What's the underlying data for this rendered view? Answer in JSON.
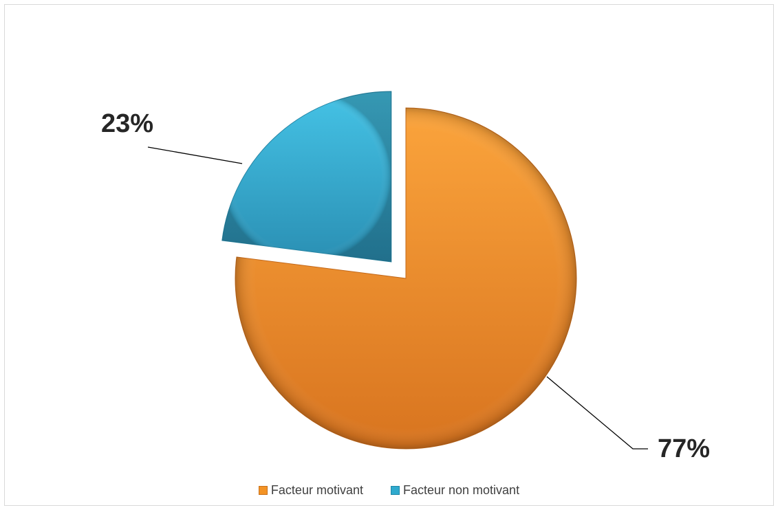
{
  "chart_data": {
    "type": "pie",
    "style": "3d-bevel, exploded",
    "slices": [
      {
        "name": "Facteur motivant",
        "value": 77,
        "label": "77%",
        "color": "#F39325"
      },
      {
        "name": "Facteur non motivant",
        "value": 23,
        "label": "23%",
        "color": "#2FAACE"
      }
    ],
    "legend": {
      "position": "bottom",
      "items": [
        {
          "label": "Facteur motivant",
          "color": "#F39325"
        },
        {
          "label": "Facteur non motivant",
          "color": "#2FAACE"
        }
      ]
    }
  }
}
